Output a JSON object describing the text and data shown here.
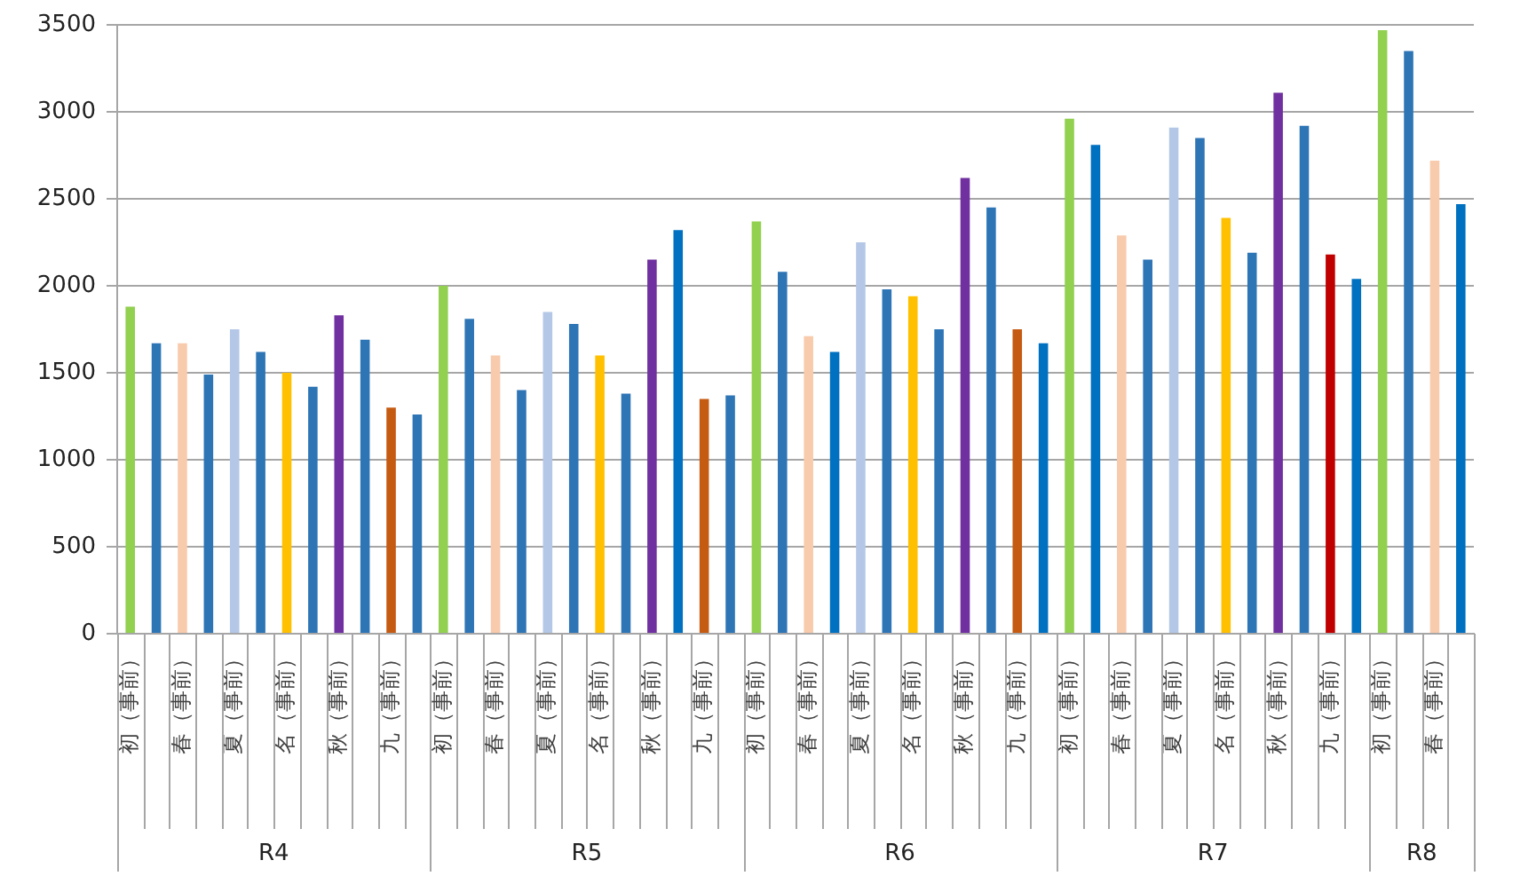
{
  "chart_data": {
    "type": "bar",
    "categories": [
      "初（事前）",
      null,
      "春（事前）",
      null,
      "夏（事前）",
      null,
      "名（事前）",
      null,
      "秋（事前）",
      null,
      "九（事前）",
      null,
      "初（事前）",
      null,
      "春（事前）",
      null,
      "夏（事前）",
      null,
      "名（事前）",
      null,
      "秋（事前）",
      null,
      "九（事前）",
      null,
      "初（事前）",
      null,
      "春（事前）",
      null,
      "夏（事前）",
      null,
      "名（事前）",
      null,
      "秋（事前）",
      null,
      "九（事前）",
      null,
      "初（事前）",
      null,
      "春（事前）",
      null,
      "夏（事前）",
      null,
      "名（事前）",
      null,
      "秋（事前）",
      null,
      "九（事前）",
      null,
      "初（事前）",
      null,
      "春（事前）",
      null
    ],
    "values": [
      1880,
      1670,
      1670,
      1490,
      1750,
      1620,
      1500,
      1420,
      1830,
      1690,
      1300,
      1260,
      2000,
      1810,
      1600,
      1400,
      1850,
      1780,
      1600,
      1380,
      2150,
      2320,
      1350,
      1370,
      2370,
      2080,
      1710,
      1620,
      2250,
      1980,
      1940,
      1750,
      2620,
      2450,
      1750,
      1670,
      2960,
      2810,
      2290,
      2150,
      2910,
      2850,
      2390,
      2190,
      3110,
      2920,
      2180,
      2040,
      3470,
      3350,
      2720,
      2470
    ],
    "colors": [
      "#92d050",
      "#2e75b6",
      "#f8cbad",
      "#2e75b6",
      "#b4c7e7",
      "#2e75b6",
      "#ffc000",
      "#2e75b6",
      "#7030a0",
      "#2e75b6",
      "#c55a11",
      "#2e75b6",
      "#92d050",
      "#2e75b6",
      "#f8cbad",
      "#2e75b6",
      "#b4c7e7",
      "#2e75b6",
      "#ffc000",
      "#2e75b6",
      "#7030a0",
      "#0070c0",
      "#c55a11",
      "#2e75b6",
      "#92d050",
      "#2e75b6",
      "#f8cbad",
      "#0070c0",
      "#b4c7e7",
      "#2e75b6",
      "#ffc000",
      "#2e75b6",
      "#7030a0",
      "#2e75b6",
      "#c55a11",
      "#0070c0",
      "#92d050",
      "#0070c0",
      "#f8cbad",
      "#2e75b6",
      "#b4c7e7",
      "#2e75b6",
      "#ffc000",
      "#2e75b6",
      "#7030a0",
      "#2e75b6",
      "#c00000",
      "#0070c0",
      "#92d050",
      "#2e75b6",
      "#f8cbad",
      "#0070c0"
    ],
    "ylim": [
      0,
      3500
    ],
    "yticks": [
      0,
      500,
      1000,
      1500,
      2000,
      2500,
      3000,
      3500
    ],
    "grid": "y",
    "legend": false,
    "annotations": [
      "R4",
      "R5",
      "R6",
      "R7",
      "R8"
    ]
  }
}
